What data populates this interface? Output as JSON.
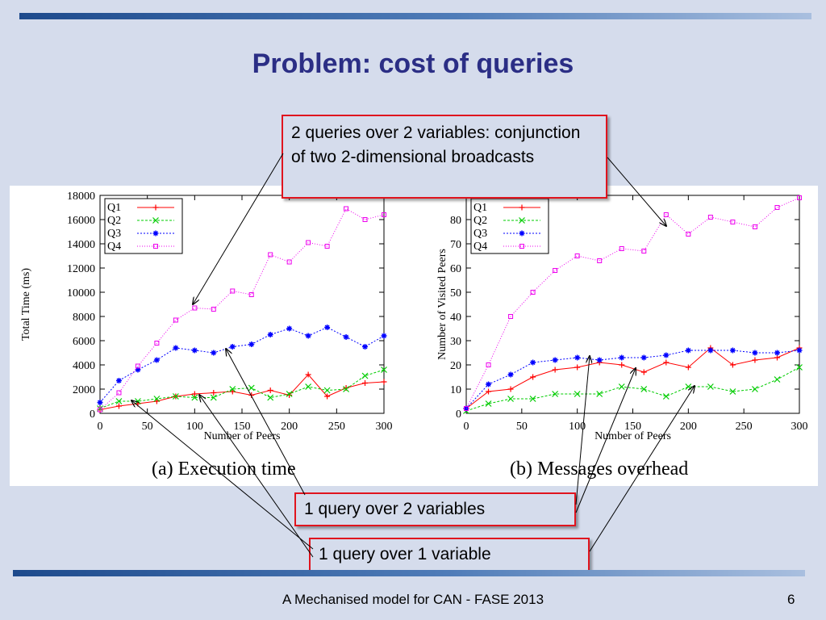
{
  "slide": {
    "title": "Problem: cost of queries",
    "footer": "A Mechanised model for CAN - FASE 2013",
    "page_number": "6",
    "callouts": {
      "top": "2 queries over 2 variables: conjunction of two 2-dimensional broadcasts",
      "middle": "1 query over 2 variables",
      "bottom": "1 query over 1 variable"
    },
    "colors": {
      "title": "#2b2e85",
      "callout_border": "#e0141e",
      "background": "#d5dcec"
    }
  },
  "chart_data": [
    {
      "type": "line",
      "caption": "(a) Execution time",
      "xlabel": "Number of Peers",
      "ylabel": "Total Time (ms)",
      "xlim": [
        0,
        300
      ],
      "ylim": [
        0,
        18000
      ],
      "xticks": [
        0,
        50,
        100,
        150,
        200,
        250,
        300
      ],
      "yticks": [
        0,
        2000,
        4000,
        6000,
        8000,
        10000,
        12000,
        14000,
        16000,
        18000
      ],
      "legend_position": "top-left",
      "x": [
        0,
        20,
        40,
        60,
        80,
        100,
        120,
        140,
        160,
        180,
        200,
        220,
        240,
        260,
        280,
        300
      ],
      "series": [
        {
          "name": "Q1",
          "color": "#ff0000",
          "marker": "+",
          "values": [
            300,
            600,
            800,
            1000,
            1400,
            1600,
            1700,
            1800,
            1500,
            1900,
            1500,
            3200,
            1400,
            2100,
            2500,
            2600
          ]
        },
        {
          "name": "Q2",
          "color": "#00cc00",
          "marker": "x",
          "values": [
            400,
            1000,
            1000,
            1200,
            1400,
            1300,
            1300,
            2000,
            2100,
            1300,
            1600,
            2200,
            1900,
            2000,
            3100,
            3600
          ]
        },
        {
          "name": "Q3",
          "color": "#0000ff",
          "marker": "*",
          "values": [
            900,
            2700,
            3600,
            4400,
            5400,
            5200,
            5000,
            5500,
            5700,
            6500,
            7000,
            6400,
            7100,
            6300,
            5500,
            6400
          ]
        },
        {
          "name": "Q4",
          "color": "#ee00ee",
          "marker": "s",
          "values": [
            300,
            1700,
            3900,
            5800,
            7700,
            8700,
            8600,
            10100,
            9800,
            13100,
            12500,
            14100,
            13800,
            16900,
            16000,
            16400
          ]
        }
      ]
    },
    {
      "type": "line",
      "caption": "(b) Messages overhead",
      "xlabel": "Number of Peers",
      "ylabel": "Number of Visited Peers",
      "xlim": [
        0,
        300
      ],
      "ylim": [
        0,
        90
      ],
      "xticks": [
        0,
        50,
        100,
        150,
        200,
        250,
        300
      ],
      "yticks": [
        0,
        10,
        20,
        30,
        40,
        50,
        60,
        70,
        80
      ],
      "legend_position": "top-left",
      "x": [
        0,
        20,
        40,
        60,
        80,
        100,
        120,
        140,
        160,
        180,
        200,
        220,
        240,
        260,
        280,
        300
      ],
      "series": [
        {
          "name": "Q1",
          "color": "#ff0000",
          "marker": "+",
          "values": [
            2,
            9,
            10,
            15,
            18,
            19,
            21,
            20,
            17,
            21,
            19,
            27,
            20,
            22,
            23,
            27
          ]
        },
        {
          "name": "Q2",
          "color": "#00cc00",
          "marker": "x",
          "values": [
            1,
            4,
            6,
            6,
            8,
            8,
            8,
            11,
            10,
            7,
            11,
            11,
            9,
            10,
            14,
            19
          ]
        },
        {
          "name": "Q3",
          "color": "#0000ff",
          "marker": "*",
          "values": [
            2,
            12,
            16,
            21,
            22,
            23,
            22,
            23,
            23,
            24,
            26,
            26,
            26,
            25,
            25,
            26
          ]
        },
        {
          "name": "Q4",
          "color": "#ee00ee",
          "marker": "s",
          "values": [
            2,
            20,
            40,
            50,
            59,
            65,
            63,
            68,
            67,
            82,
            74,
            81,
            79,
            77,
            85,
            89
          ]
        }
      ]
    }
  ]
}
